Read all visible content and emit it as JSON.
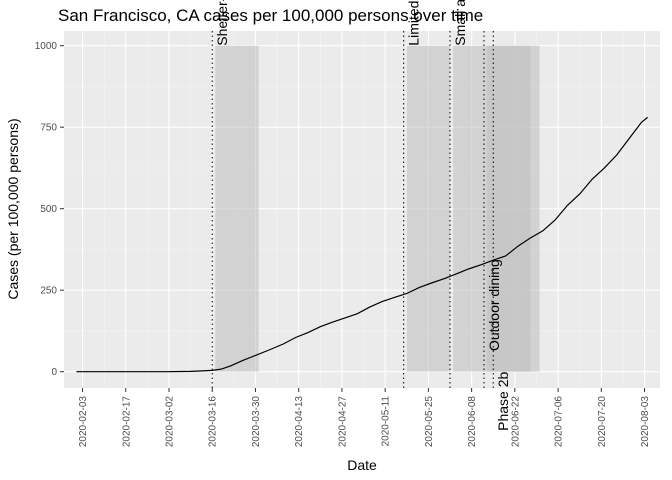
{
  "chart_data": {
    "type": "line",
    "title": "San Francisco, CA cases per 100,000 persons over time",
    "xlabel": "Date",
    "ylabel": "Cases (per 100,000 persons)",
    "x_range": [
      "2020-01-28",
      "2020-08-08"
    ],
    "ylim": [
      -50,
      1045
    ],
    "x_ticks": [
      "2020-02-03",
      "2020-02-17",
      "2020-03-02",
      "2020-03-16",
      "2020-03-30",
      "2020-04-13",
      "2020-04-27",
      "2020-05-11",
      "2020-05-25",
      "2020-06-08",
      "2020-06-22",
      "2020-07-06",
      "2020-07-20",
      "2020-08-03"
    ],
    "y_ticks": [
      0,
      250,
      500,
      750,
      1000
    ],
    "grid": true,
    "colors": {
      "panel": "#ebebeb",
      "grid_major": "#ffffff",
      "grid_minor": "#f5f5f5",
      "shade": "#bdbdbd",
      "line": "#000000",
      "event_line": "#000000"
    },
    "shaded_periods": [
      {
        "start": "2020-03-17",
        "end": "2020-03-31",
        "ymax": 1000
      },
      {
        "start": "2020-05-18",
        "end": "2020-06-01",
        "ymax": 1000
      },
      {
        "start": "2020-06-02",
        "end": "2020-06-16",
        "ymax": 1000
      },
      {
        "start": "2020-06-13",
        "end": "2020-06-27",
        "ymax": 1000
      },
      {
        "start": "2020-06-16",
        "end": "2020-06-30",
        "ymax": 1000
      }
    ],
    "events": [
      {
        "date": "2020-03-16",
        "label": "Shelter-in-place",
        "label_y": 1000,
        "anchor": "start"
      },
      {
        "date": "2020-05-17",
        "label": "Limited openings",
        "label_y": 1000,
        "anchor": "start"
      },
      {
        "date": "2020-06-01",
        "label": "Small activities",
        "label_y": 1000,
        "anchor": "start"
      },
      {
        "date": "2020-06-12",
        "label": "Outdoor dining",
        "label_y": 345,
        "anchor": "end"
      },
      {
        "date": "2020-06-15",
        "label": "Phase 2b",
        "label_y": 0,
        "anchor": "end"
      }
    ],
    "series": [
      {
        "points": [
          [
            "2020-02-01",
            0
          ],
          [
            "2020-02-15",
            0
          ],
          [
            "2020-03-01",
            0
          ],
          [
            "2020-03-09",
            1
          ],
          [
            "2020-03-12",
            2
          ],
          [
            "2020-03-16",
            4
          ],
          [
            "2020-03-19",
            8
          ],
          [
            "2020-03-22",
            18
          ],
          [
            "2020-03-26",
            35
          ],
          [
            "2020-03-30",
            50
          ],
          [
            "2020-04-03",
            65
          ],
          [
            "2020-04-08",
            85
          ],
          [
            "2020-04-12",
            105
          ],
          [
            "2020-04-16",
            120
          ],
          [
            "2020-04-20",
            138
          ],
          [
            "2020-04-24",
            152
          ],
          [
            "2020-04-28",
            165
          ],
          [
            "2020-05-02",
            178
          ],
          [
            "2020-05-06",
            198
          ],
          [
            "2020-05-10",
            215
          ],
          [
            "2020-05-14",
            228
          ],
          [
            "2020-05-18",
            240
          ],
          [
            "2020-05-22",
            258
          ],
          [
            "2020-05-26",
            272
          ],
          [
            "2020-05-30",
            285
          ],
          [
            "2020-06-03",
            300
          ],
          [
            "2020-06-07",
            315
          ],
          [
            "2020-06-11",
            328
          ],
          [
            "2020-06-15",
            342
          ],
          [
            "2020-06-19",
            355
          ],
          [
            "2020-06-23",
            385
          ],
          [
            "2020-06-27",
            410
          ],
          [
            "2020-07-01",
            432
          ],
          [
            "2020-07-05",
            465
          ],
          [
            "2020-07-09",
            510
          ],
          [
            "2020-07-13",
            545
          ],
          [
            "2020-07-17",
            590
          ],
          [
            "2020-07-21",
            625
          ],
          [
            "2020-07-25",
            665
          ],
          [
            "2020-07-29",
            715
          ],
          [
            "2020-08-02",
            765
          ],
          [
            "2020-08-04",
            780
          ]
        ]
      }
    ]
  }
}
